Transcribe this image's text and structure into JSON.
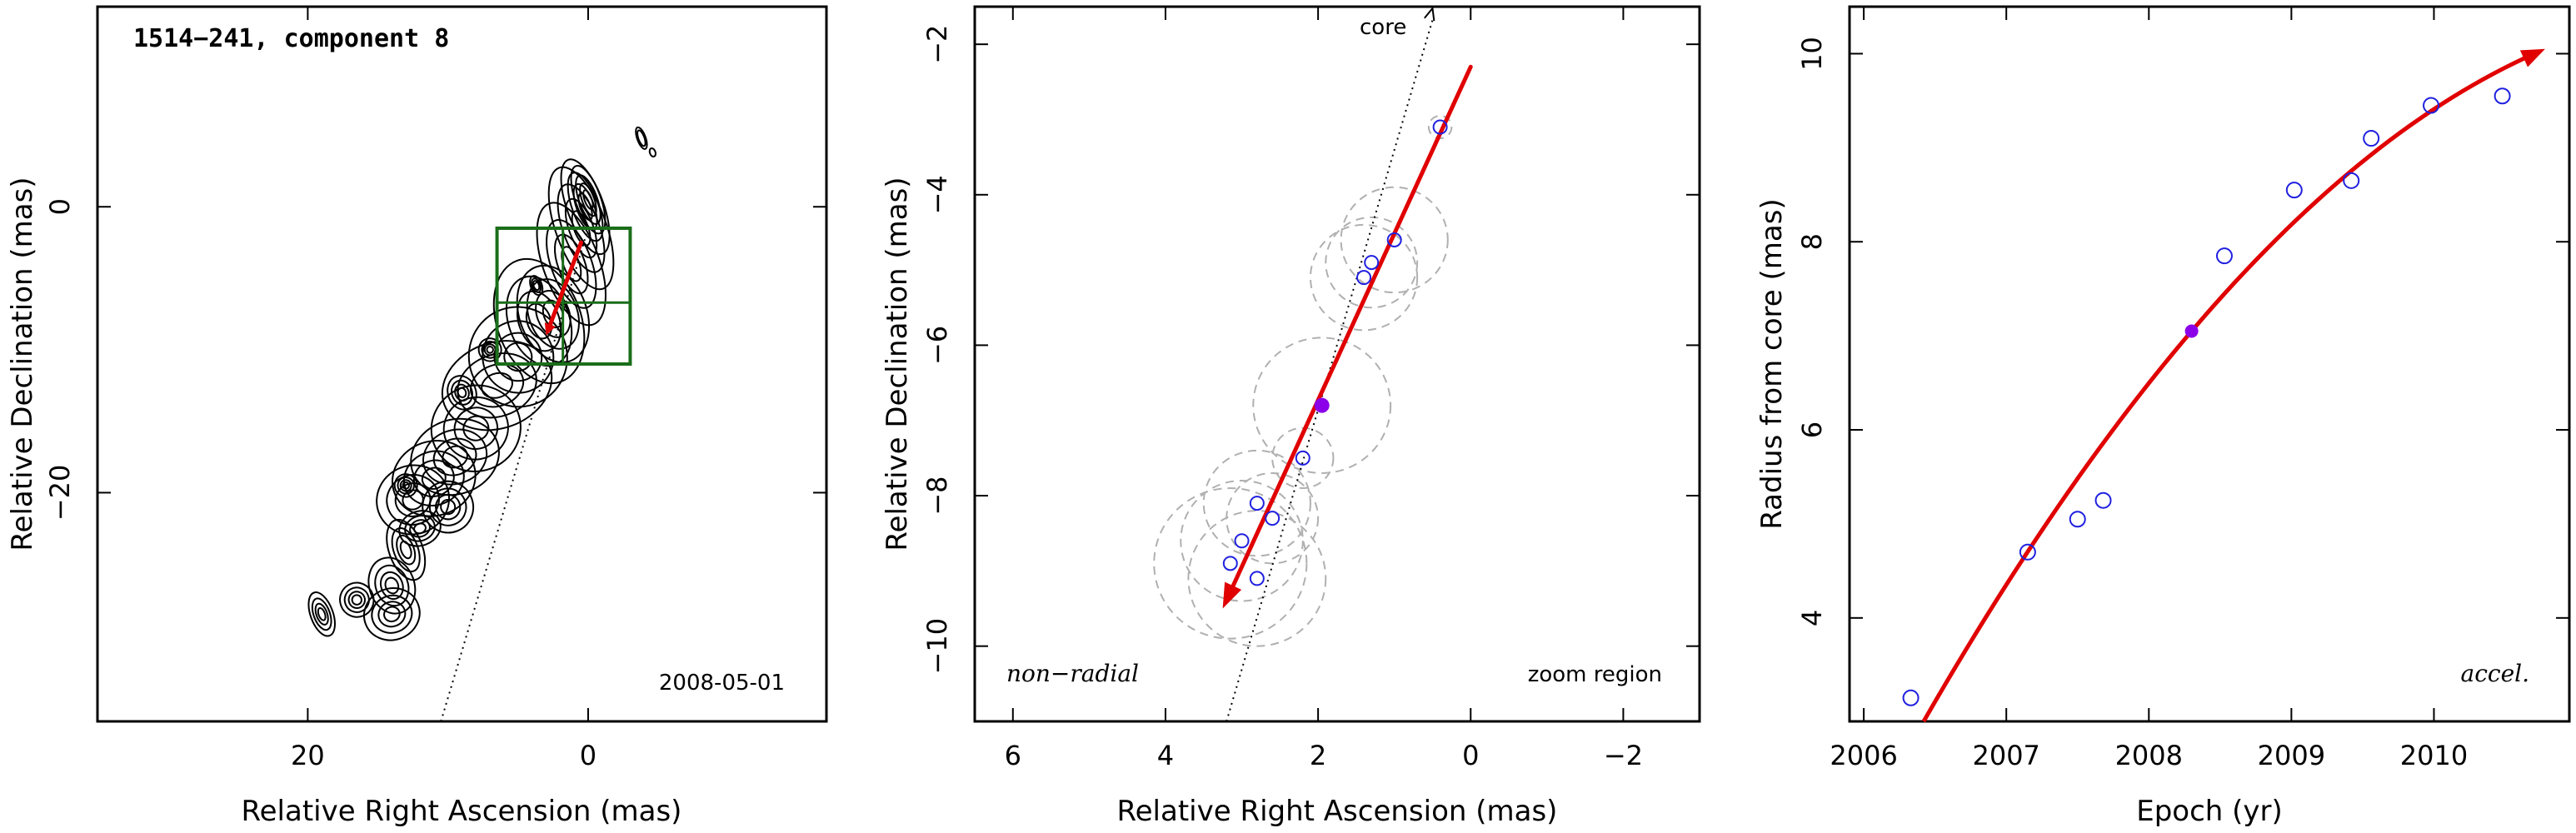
{
  "colors": {
    "axis": "#000000",
    "fit_arrow": "#e00000",
    "epoch_marker": "#2020e0",
    "reference_epoch": "#8b00e8",
    "zoom_box": "#1a6e1a",
    "error_circle": "#b0b0b0",
    "contour": "#000000"
  },
  "chart_data": [
    {
      "type": "contour",
      "title": "1514−241, component 8",
      "date": "2008-05-01",
      "xlabel": "Relative Right Ascension (mas)",
      "ylabel": "Relative Declination (mas)",
      "xlim": [
        35,
        -17
      ],
      "ylim": [
        -36,
        14
      ],
      "xticks": [
        20,
        0
      ],
      "yticks": [
        0,
        -20
      ],
      "xtick_labels": [
        "20",
        "0"
      ],
      "ytick_labels": [
        "0",
        "−20"
      ],
      "core_direction_line": {
        "from": [
          10.5,
          -36
        ],
        "to": [
          0,
          -1.5
        ],
        "style": "dotted"
      },
      "fit_arrow": {
        "from": [
          0.5,
          -2.5
        ],
        "to": [
          3.0,
          -9.0
        ]
      },
      "zoom_region": {
        "x": [
          -3,
          6.5
        ],
        "y": [
          -11,
          -1.5
        ],
        "mid_x": 1.8,
        "mid_y": -6.7
      },
      "jet_contours": [
        {
          "x": 0.0,
          "y": 0.5,
          "rx": 0.9,
          "ry": 2.5
        },
        {
          "x": 0.2,
          "y": 0.0,
          "rx": 1.3,
          "ry": 3.5
        },
        {
          "x": 0.5,
          "y": -1.5,
          "rx": 1.8,
          "ry": 4.5
        },
        {
          "x": 1.2,
          "y": -4.0,
          "rx": 2.0,
          "ry": 4.5
        },
        {
          "x": 2.5,
          "y": -7.5,
          "rx": 2.4,
          "ry": 3.5
        },
        {
          "x": 3.5,
          "y": -8.0,
          "rx": 3.0,
          "ry": 4.5
        },
        {
          "x": 5.0,
          "y": -10.5,
          "rx": 3.5,
          "ry": 3.5
        },
        {
          "x": 6.5,
          "y": -12.5,
          "rx": 4.0,
          "ry": 3.0
        },
        {
          "x": 8.0,
          "y": -15.5,
          "rx": 3.2,
          "ry": 3.0
        },
        {
          "x": 9.5,
          "y": -17.5,
          "rx": 3.2,
          "ry": 2.6
        },
        {
          "x": 11.0,
          "y": -19.0,
          "rx": 3.0,
          "ry": 2.6
        },
        {
          "x": 12.5,
          "y": -20.5,
          "rx": 2.6,
          "ry": 2.4
        },
        {
          "x": 10.0,
          "y": -21.0,
          "rx": 1.8,
          "ry": 1.8
        },
        {
          "x": 13.0,
          "y": -24.0,
          "rx": 1.2,
          "ry": 2.2
        },
        {
          "x": 14.0,
          "y": -26.5,
          "rx": 1.6,
          "ry": 2.0
        },
        {
          "x": 14.0,
          "y": -28.5,
          "rx": 2.0,
          "ry": 1.8
        },
        {
          "x": 16.5,
          "y": -27.5,
          "rx": 1.2,
          "ry": 1.2
        },
        {
          "x": 19.0,
          "y": -28.5,
          "rx": 0.8,
          "ry": 1.6
        },
        {
          "x": 12.0,
          "y": -22.5,
          "rx": 1.5,
          "ry": 1.2
        },
        {
          "x": 9.0,
          "y": -13.0,
          "rx": 1.0,
          "ry": 1.2
        },
        {
          "x": 7.0,
          "y": -10.0,
          "rx": 0.8,
          "ry": 0.8
        },
        {
          "x": 13.0,
          "y": -19.5,
          "rx": 0.8,
          "ry": 0.8
        },
        {
          "x": -3.8,
          "y": 4.8,
          "rx": 0.3,
          "ry": 0.8
        },
        {
          "x": -4.6,
          "y": 3.8,
          "rx": 0.2,
          "ry": 0.3
        },
        {
          "x": 3.7,
          "y": -5.5,
          "rx": 0.4,
          "ry": 0.7
        }
      ]
    },
    {
      "type": "scatter",
      "xlabel": "Relative Right Ascension (mas)",
      "ylabel": "Relative Declination (mas)",
      "xlim": [
        6.5,
        -3
      ],
      "ylim": [
        -11,
        -1.5
      ],
      "xticks": [
        6,
        4,
        2,
        0,
        -2
      ],
      "yticks": [
        -2,
        -4,
        -6,
        -8,
        -10
      ],
      "xtick_labels": [
        "6",
        "4",
        "2",
        "0",
        "−2"
      ],
      "ytick_labels": [
        "−2",
        "−4",
        "−6",
        "−8",
        "−10"
      ],
      "labels": {
        "core": "core",
        "left": "non−radial",
        "right": "zoom region"
      },
      "core_direction_line": {
        "from": [
          3.2,
          -11
        ],
        "to": [
          0.5,
          -1.5
        ],
        "style": "dotted"
      },
      "fit_arrow": {
        "from": [
          0.0,
          -2.3
        ],
        "to": [
          3.25,
          -9.5
        ]
      },
      "reference_point": {
        "x": 1.95,
        "y": -6.8
      },
      "points": [
        {
          "x": 0.4,
          "y": -3.1,
          "r": 0.15
        },
        {
          "x": 1.0,
          "y": -4.6,
          "r": 0.7
        },
        {
          "x": 1.3,
          "y": -4.9,
          "r": 0.6
        },
        {
          "x": 1.4,
          "y": -5.1,
          "r": 0.7
        },
        {
          "x": 2.2,
          "y": -7.5,
          "r": 0.4
        },
        {
          "x": 2.6,
          "y": -8.3,
          "r": 0.6
        },
        {
          "x": 2.8,
          "y": -8.1,
          "r": 0.7
        },
        {
          "x": 3.0,
          "y": -8.6,
          "r": 0.8
        },
        {
          "x": 2.8,
          "y": -9.1,
          "r": 0.9
        },
        {
          "x": 3.15,
          "y": -8.9,
          "r": 1.0
        }
      ],
      "circles": [
        {
          "x": 0.4,
          "y": -3.1,
          "r": 0.15
        },
        {
          "x": 1.0,
          "y": -4.6,
          "r": 0.7
        },
        {
          "x": 1.3,
          "y": -4.9,
          "r": 0.6
        },
        {
          "x": 1.4,
          "y": -5.1,
          "r": 0.7
        },
        {
          "x": 1.95,
          "y": -6.8,
          "r": 0.9
        },
        {
          "x": 2.2,
          "y": -7.5,
          "r": 0.4
        },
        {
          "x": 2.6,
          "y": -8.3,
          "r": 0.6
        },
        {
          "x": 2.8,
          "y": -8.1,
          "r": 0.7
        },
        {
          "x": 3.0,
          "y": -8.6,
          "r": 0.8
        },
        {
          "x": 2.8,
          "y": -9.1,
          "r": 0.9
        },
        {
          "x": 3.15,
          "y": -8.9,
          "r": 1.0
        }
      ]
    },
    {
      "type": "scatter",
      "xlabel": "Epoch (yr)",
      "ylabel": "Radius from core (mas)",
      "xlim": [
        2005.9,
        2010.95
      ],
      "ylim": [
        2.9,
        10.5
      ],
      "xticks": [
        2006,
        2007,
        2008,
        2009,
        2010
      ],
      "yticks": [
        4,
        6,
        8,
        10
      ],
      "xtick_labels": [
        "2006",
        "2007",
        "2008",
        "2009",
        "2010"
      ],
      "ytick_labels": [
        "4",
        "6",
        "8",
        "10"
      ],
      "labels": {
        "corner": "accel."
      },
      "fit_curve": {
        "x0": 2006.42,
        "y0": 2.9,
        "x1": 2008.3,
        "y1": 7.05,
        "x2": 2010.78,
        "y2": 10.05
      },
      "reference_point": {
        "x": 2008.3,
        "y": 7.05
      },
      "points": [
        {
          "x": 2006.33,
          "y": 3.15
        },
        {
          "x": 2007.15,
          "y": 4.7
        },
        {
          "x": 2007.5,
          "y": 5.05
        },
        {
          "x": 2007.68,
          "y": 5.25
        },
        {
          "x": 2008.53,
          "y": 7.85
        },
        {
          "x": 2009.02,
          "y": 8.55
        },
        {
          "x": 2009.42,
          "y": 8.65
        },
        {
          "x": 2009.56,
          "y": 9.1
        },
        {
          "x": 2009.98,
          "y": 9.45
        },
        {
          "x": 2010.48,
          "y": 9.55
        }
      ]
    }
  ]
}
